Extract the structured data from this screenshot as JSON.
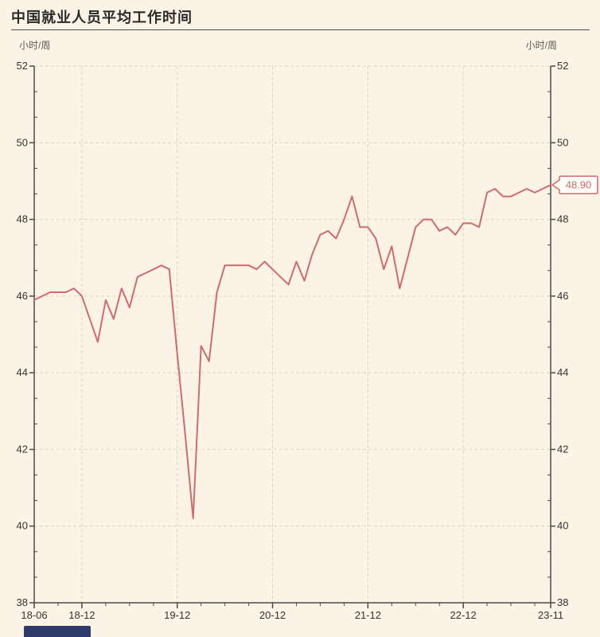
{
  "title": "中国就业人员平均工作时间",
  "axis_units": {
    "left": "小时/周",
    "right": "小时/周"
  },
  "colors": {
    "background": "#fbf3e5",
    "line": "#d06a6e",
    "grid": "#ded3bd",
    "axis": "#4a4a4a",
    "tick_text": "#333333",
    "callout_bg": "#fffef9",
    "callout_border": "#d06a6e",
    "callout_text": "#d06a6e"
  },
  "chart_data": {
    "type": "line",
    "title": "中国就业人员平均工作时间",
    "ylabel": "小时/周",
    "ylim": [
      38,
      52
    ],
    "y_ticks": [
      38,
      40,
      42,
      44,
      46,
      48,
      50,
      52
    ],
    "y_minor_ticks_per_interval": 2,
    "grid": "dashed",
    "legend_position": "none",
    "x_tick_labels": [
      "18-06",
      "18-12",
      "19-12",
      "20-12",
      "21-12",
      "22-12",
      "23-11"
    ],
    "x_tick_month_index": [
      0,
      6,
      18,
      30,
      42,
      54,
      65
    ],
    "x_grid_month_index": [
      6,
      18,
      30,
      42,
      54
    ],
    "x_minor_tick_every_months": 3,
    "last_value_label": "48.90",
    "x_labels": [
      "2018-06",
      "2018-07",
      "2018-08",
      "2018-09",
      "2018-10",
      "2018-11",
      "2018-12",
      "2019-01",
      "2019-02",
      "2019-03",
      "2019-04",
      "2019-05",
      "2019-06",
      "2019-07",
      "2019-08",
      "2019-09",
      "2019-10",
      "2019-11",
      "2019-12",
      "2020-01",
      "2020-02",
      "2020-03",
      "2020-04",
      "2020-05",
      "2020-06",
      "2020-07",
      "2020-08",
      "2020-09",
      "2020-10",
      "2020-11",
      "2020-12",
      "2021-01",
      "2021-02",
      "2021-03",
      "2021-04",
      "2021-05",
      "2021-06",
      "2021-07",
      "2021-08",
      "2021-09",
      "2021-10",
      "2021-11",
      "2021-12",
      "2022-01",
      "2022-02",
      "2022-03",
      "2022-04",
      "2022-05",
      "2022-06",
      "2022-07",
      "2022-08",
      "2022-09",
      "2022-10",
      "2022-11",
      "2022-12",
      "2023-01",
      "2023-02",
      "2023-03",
      "2023-04",
      "2023-05",
      "2023-06",
      "2023-07",
      "2023-08",
      "2023-09",
      "2023-10",
      "2023-11"
    ],
    "values": [
      45.9,
      46.0,
      46.1,
      46.1,
      46.1,
      46.2,
      46.0,
      45.4,
      44.8,
      45.9,
      45.4,
      46.2,
      45.7,
      46.5,
      46.6,
      46.7,
      46.8,
      46.7,
      44.5,
      42.4,
      40.2,
      44.7,
      44.3,
      46.1,
      46.8,
      46.8,
      46.8,
      46.8,
      46.7,
      46.9,
      46.7,
      46.5,
      46.3,
      46.9,
      46.4,
      47.1,
      47.6,
      47.7,
      47.5,
      48.0,
      48.6,
      47.8,
      47.8,
      47.5,
      46.7,
      47.3,
      46.2,
      47.0,
      47.8,
      48.0,
      48.0,
      47.7,
      47.8,
      47.6,
      47.9,
      47.9,
      47.8,
      48.7,
      48.8,
      48.6,
      48.6,
      48.7,
      48.8,
      48.7,
      48.8,
      48.9
    ]
  }
}
